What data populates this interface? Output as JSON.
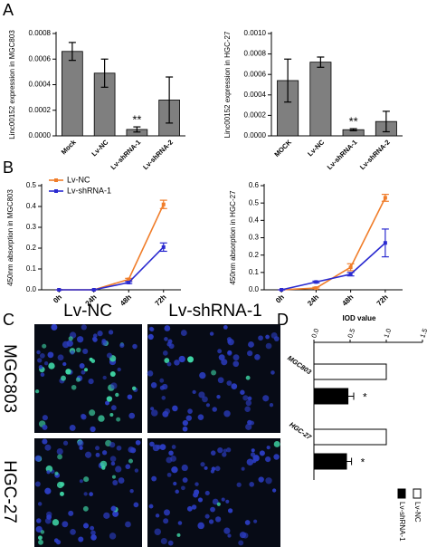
{
  "panel_labels": [
    "A",
    "B",
    "C",
    "D"
  ],
  "micrographs": {
    "columns": [
      "Lv-NC",
      "Lv-shRNA-1"
    ],
    "rows": [
      "MGC803",
      "HGC-27"
    ]
  },
  "chart_data": [
    {
      "type": "bar",
      "ylabel": "Linc00152 expression in MGC803",
      "categories": [
        "Mock",
        "Lv-NC",
        "Lv-shRNA-1",
        "Lv-shRNA-2"
      ],
      "values": [
        0.00066,
        0.00049,
        5e-05,
        0.00028
      ],
      "errors": [
        7e-05,
        0.00011,
        2e-05,
        0.00018
      ],
      "significance": [
        null,
        null,
        "**",
        null
      ],
      "color": "#7f7f7f",
      "ylim": [
        0,
        0.0008
      ],
      "yticks": [
        {
          "value": 0,
          "label": "0.0000"
        },
        {
          "value": 0.0002,
          "label": "0.0002"
        },
        {
          "value": 0.0004,
          "label": "0.0004"
        },
        {
          "value": 0.0006,
          "label": "0.0006"
        },
        {
          "value": 0.0008,
          "label": "0.0008"
        }
      ]
    },
    {
      "type": "bar",
      "ylabel": "Linc00152 expression in HGC-27",
      "categories": [
        "MOCK",
        "Lv-NC",
        "Lv-shRNA-1",
        "Lv-shRNA-2"
      ],
      "values": [
        0.00054,
        0.00072,
        6e-05,
        0.00014
      ],
      "errors": [
        0.00021,
        5e-05,
        1e-05,
        0.0001
      ],
      "significance": [
        null,
        null,
        "**",
        null
      ],
      "color": "#7f7f7f",
      "ylim": [
        0,
        0.001
      ],
      "yticks": [
        {
          "value": 0,
          "label": "0.0000"
        },
        {
          "value": 0.0002,
          "label": "0.0002"
        },
        {
          "value": 0.0004,
          "label": "0.0004"
        },
        {
          "value": 0.0006,
          "label": "0.0006"
        },
        {
          "value": 0.0008,
          "label": "0.0008"
        },
        {
          "value": 0.001,
          "label": "0.0010"
        }
      ]
    },
    {
      "type": "line",
      "ylabel": "450nm absorption in MGC803",
      "categories": [
        "0h",
        "24h",
        "48h",
        "72h"
      ],
      "series": [
        {
          "name": "Lv-NC",
          "color": "#f07d2a",
          "values": [
            0,
            0,
            0.05,
            0.41
          ],
          "errors": [
            0,
            0,
            0.005,
            0.02
          ]
        },
        {
          "name": "Lv-shRNA-1",
          "color": "#2a2ad0",
          "values": [
            0,
            0,
            0.035,
            0.205
          ],
          "errors": [
            0,
            0,
            0.005,
            0.02
          ]
        }
      ],
      "legend": "upper left",
      "ylim": [
        0,
        0.5
      ],
      "yticks": [
        {
          "value": 0,
          "label": "0.0"
        },
        0.1,
        0.2,
        0.3,
        0.4,
        0.5
      ]
    },
    {
      "type": "line",
      "ylabel": "450nm absorption in HGC-27",
      "categories": [
        "0h",
        "24h",
        "48h",
        "72h"
      ],
      "series": [
        {
          "color": "#f07d2a",
          "values": [
            0,
            0.01,
            0.13,
            0.53
          ],
          "errors": [
            0,
            0.005,
            0.02,
            0.02
          ]
        },
        {
          "color": "#2a2ad0",
          "values": [
            0,
            0.045,
            0.09,
            0.27
          ],
          "errors": [
            0,
            0.005,
            0.01,
            0.08
          ]
        }
      ],
      "ylim": [
        0,
        0.6
      ],
      "yticks": [
        {
          "value": 0,
          "label": "0.0"
        },
        0.1,
        0.2,
        0.3,
        0.4,
        0.5,
        0.6
      ]
    },
    {
      "type": "hbar",
      "title": "IOD value",
      "categories": [
        "MGC803",
        "HGC-27"
      ],
      "series": [
        {
          "name": "Lv-NC",
          "color": "#ffffff",
          "values": [
            1.0,
            1.0
          ],
          "errors": [
            0,
            0
          ]
        },
        {
          "name": "Lv-shRNA-1",
          "color": "#000000",
          "values": [
            0.47,
            0.45
          ],
          "errors": [
            0.08,
            0.07
          ],
          "significance": [
            "*",
            "*"
          ]
        }
      ],
      "legend": "bottom",
      "xlim": [
        0,
        1.5
      ],
      "xticks": [
        {
          "value": 0,
          "label": "0.0"
        },
        0.5,
        {
          "value": 1,
          "label": "1.0"
        },
        1.5
      ]
    }
  ]
}
